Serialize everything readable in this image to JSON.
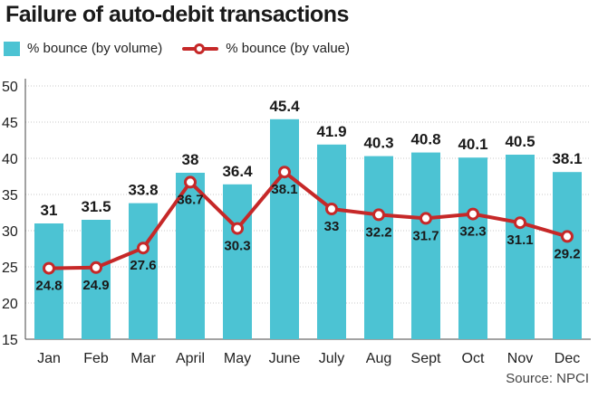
{
  "title": "Failure of auto-debit transactions",
  "source": "Source: NPCI",
  "colors": {
    "bar": "#4cc3d3",
    "line": "#c62828",
    "point_fill": "#ffffff",
    "grid": "#c8c8c8",
    "axis": "#444444"
  },
  "chart_data": {
    "type": "bar",
    "title": "Failure of auto-debit transactions",
    "categories": [
      "Jan",
      "Feb",
      "Mar",
      "April",
      "May",
      "June",
      "July",
      "Aug",
      "Sept",
      "Oct",
      "Nov",
      "Dec"
    ],
    "series": [
      {
        "name": "% bounce (by volume)",
        "type": "bar",
        "values": [
          31,
          31.5,
          33.8,
          38,
          36.4,
          45.4,
          41.9,
          40.3,
          40.8,
          40.1,
          40.5,
          38.1
        ]
      },
      {
        "name": "% bounce (by value)",
        "type": "line",
        "values": [
          24.8,
          24.9,
          27.6,
          36.7,
          30.3,
          38.1,
          33,
          32.2,
          31.7,
          32.3,
          31.1,
          29.2
        ]
      }
    ],
    "ylim": [
      15,
      50
    ],
    "yticks": [
      15,
      20,
      25,
      30,
      35,
      40,
      45,
      50
    ],
    "legend": "top-left"
  }
}
